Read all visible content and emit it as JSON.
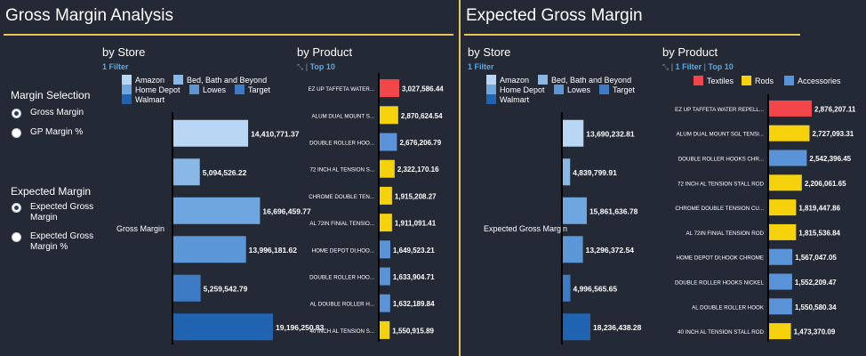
{
  "left_panel": {
    "title": "Gross Margin Analysis",
    "by_store": {
      "title": "by Store",
      "filter": "1 Filter"
    },
    "by_product": {
      "title": "by Product",
      "filter": "Top 10"
    },
    "margin_selection": {
      "title": "Margin Selection",
      "options": [
        {
          "label": "Gross Margin",
          "selected": true
        },
        {
          "label": "GP Margin %",
          "selected": false
        }
      ]
    },
    "expected_margin": {
      "title": "Expected Margin",
      "options": [
        {
          "label": "Expected Gross Margin",
          "selected": true
        },
        {
          "label": "Expected Gross Margin %",
          "selected": false
        }
      ]
    }
  },
  "right_panel": {
    "title": "Expected Gross Margin",
    "by_store": {
      "title": "by Store",
      "filter": "1 Filter"
    },
    "by_product": {
      "title": "by Product",
      "filter": "1 Filter",
      "filter2": "Top 10"
    }
  },
  "store_legend": [
    {
      "name": "Amazon",
      "color": "#b9d7f5"
    },
    {
      "name": "Bed, Bath and Beyond",
      "color": "#8ab8e6"
    },
    {
      "name": "Home Depot",
      "color": "#6ea7df"
    },
    {
      "name": "Lowes",
      "color": "#5b97d6"
    },
    {
      "name": "Target",
      "color": "#3d7cc4"
    },
    {
      "name": "Walmart",
      "color": "#1f63b1"
    }
  ],
  "product_legend": [
    {
      "name": "Textiles",
      "color": "#f2464b"
    },
    {
      "name": "Rods",
      "color": "#f5d20c"
    },
    {
      "name": "Accessories",
      "color": "#5a93d7"
    }
  ],
  "chart_data": [
    {
      "type": "bar",
      "title": "by Store",
      "ylabel": "Gross Margin",
      "categories": [
        "Amazon",
        "Bed, Bath and Beyond",
        "Home Depot",
        "Lowes",
        "Target",
        "Walmart"
      ],
      "values": [
        14410771.37,
        5094526.22,
        16696459.77,
        13996181.62,
        5259542.79,
        19196250.83
      ],
      "value_labels": [
        "14,410,771.37",
        "5,094,526.22",
        "16,696,459.77",
        "13,996,181.62",
        "5,259,542.79",
        "19,196,250.83"
      ],
      "colors": [
        "#b9d7f5",
        "#8ab8e6",
        "#6ea7df",
        "#5b97d6",
        "#3d7cc4",
        "#1f63b1"
      ],
      "orientation": "horizontal"
    },
    {
      "type": "bar",
      "title": "by Product",
      "categories": [
        "EZ UP TAFFETA WATER...",
        "ALUM DUAL MOUNT S...",
        "DOUBLE ROLLER HOO...",
        "72 INCH AL TENSION S...",
        "CHROME DOUBLE TEN...",
        "AL 72IN FINIAL TENSIO...",
        "HOME DEPOT DI;HOO...",
        "DOUBLE ROLLER HOO...",
        "AL DOUBLE ROLLER H...",
        "40 INCH AL TENSION S..."
      ],
      "values": [
        3027586.44,
        2870624.54,
        2676206.79,
        2322170.16,
        1915208.27,
        1911091.41,
        1649523.21,
        1633904.71,
        1632189.84,
        1550915.89
      ],
      "value_labels": [
        "3,027,586.44",
        "2,870,624.54",
        "2,676,206.79",
        "2,322,170.16",
        "1,915,208.27",
        "1,911,091.41",
        "1,649,523.21",
        "1,633,904.71",
        "1,632,189.84",
        "1,550,915.89"
      ],
      "colors": [
        "#f2464b",
        "#f5d20c",
        "#5a93d7",
        "#f5d20c",
        "#f5d20c",
        "#f5d20c",
        "#5a93d7",
        "#5a93d7",
        "#5a93d7",
        "#f5d20c"
      ],
      "orientation": "horizontal"
    },
    {
      "type": "bar",
      "title": "by Store",
      "ylabel": "Expected Gross Margin",
      "categories": [
        "Amazon",
        "Bed, Bath and Beyond",
        "Home Depot",
        "Lowes",
        "Target",
        "Walmart"
      ],
      "values": [
        13690232.81,
        4839799.91,
        15861636.78,
        13296372.54,
        4996565.65,
        18236438.28
      ],
      "value_labels": [
        "13,690,232.81",
        "4,839,799.91",
        "15,861,636.78",
        "13,296,372.54",
        "4,996,565.65",
        "18,236,438.28"
      ],
      "colors": [
        "#b9d7f5",
        "#8ab8e6",
        "#6ea7df",
        "#5b97d6",
        "#3d7cc4",
        "#1f63b1"
      ],
      "orientation": "horizontal"
    },
    {
      "type": "bar",
      "title": "by Product",
      "categories": [
        "EZ UP TAFFETA WATER REPELL...",
        "ALUM DUAL MOUNT SGL TENSI...",
        "DOUBLE ROLLER HOOKS CHR...",
        "72 INCH AL TENSION STALL ROD",
        "CHROME DOUBLE TENSION CU...",
        "AL 72IN FINIAL TENSION ROD",
        "HOME DEPOT DI;HOOK CHROME",
        "DOUBLE ROLLER HOOKS NICKEL",
        "AL DOUBLE ROLLER HOOK",
        "40 INCH AL TENSION STALL ROD"
      ],
      "values": [
        2876207.11,
        2727093.31,
        2542396.45,
        2206061.65,
        1819447.86,
        1815536.84,
        1567047.05,
        1552209.47,
        1550580.34,
        1473370.09
      ],
      "value_labels": [
        "2,876,207.11",
        "2,727,093.31",
        "2,542,396.45",
        "2,206,061.65",
        "1,819,447.86",
        "1,815,536.84",
        "1,567,047.05",
        "1,552,209.47",
        "1,550,580.34",
        "1,473,370.09"
      ],
      "colors": [
        "#f2464b",
        "#f5d20c",
        "#5a93d7",
        "#f5d20c",
        "#f5d20c",
        "#f5d20c",
        "#5a93d7",
        "#5a93d7",
        "#5a93d7",
        "#f5d20c"
      ],
      "orientation": "horizontal"
    }
  ]
}
